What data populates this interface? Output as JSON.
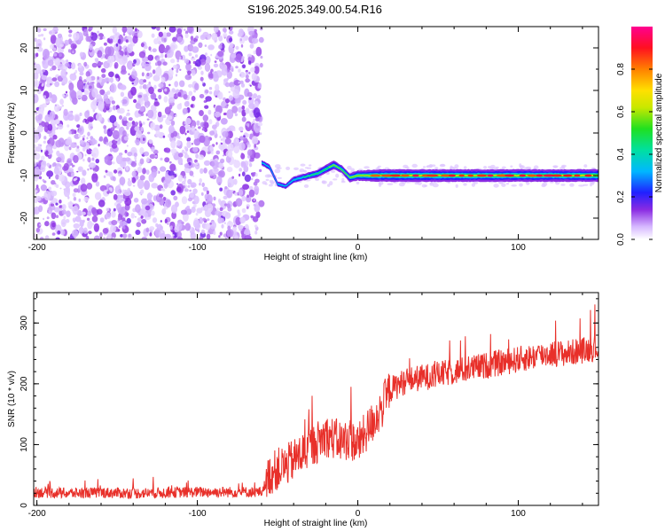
{
  "title": "S196.2025.349.00.54.R16",
  "chart_data": [
    {
      "type": "heatmap",
      "xlabel": "Height of straight line (km)",
      "ylabel": "Frequency (Hz)",
      "xlim": [
        -202,
        150
      ],
      "ylim": [
        -25,
        25
      ],
      "xticks": [
        -200,
        -100,
        0,
        100
      ],
      "yticks": [
        -20,
        -10,
        0,
        10,
        20
      ],
      "colorbar": {
        "label": "Normalized spectral amplitude",
        "range": [
          0.0,
          1.0
        ],
        "ticks": [
          0.0,
          0.2,
          0.4,
          0.6,
          0.8
        ]
      },
      "noise_region_x": [
        -202,
        -60
      ],
      "signal_trace": {
        "x": [
          -60,
          -55,
          -50,
          -45,
          -40,
          -35,
          -30,
          -25,
          -20,
          -15,
          -10,
          -5,
          0,
          5,
          10,
          20,
          40,
          60,
          80,
          100,
          120,
          150
        ],
        "frequency": [
          -7,
          -8,
          -12,
          -12.5,
          -11,
          -10.5,
          -10,
          -9.5,
          -8.5,
          -7.5,
          -8.5,
          -10.5,
          -10,
          -10,
          -10,
          -10,
          -10,
          -10,
          -10,
          -10,
          -10,
          -10
        ],
        "amplitude": [
          0.3,
          0.35,
          0.3,
          0.3,
          0.4,
          0.4,
          0.45,
          0.5,
          0.55,
          0.6,
          0.5,
          0.6,
          0.7,
          0.75,
          0.85,
          0.9,
          0.9,
          0.9,
          0.88,
          0.9,
          0.88,
          0.9
        ]
      }
    },
    {
      "type": "line",
      "xlabel": "Height of straight line (km)",
      "ylabel": "SNR (10 * v/v)",
      "xlim": [
        -202,
        150
      ],
      "ylim": [
        0,
        350
      ],
      "xticks": [
        -200,
        -100,
        0,
        100
      ],
      "yticks": [
        0,
        100,
        200,
        300
      ],
      "series": [
        {
          "name": "SNR",
          "color": "#e8302a",
          "x": [
            -202,
            -180,
            -160,
            -140,
            -120,
            -100,
            -80,
            -60,
            -55,
            -50,
            -45,
            -40,
            -35,
            -30,
            -25,
            -20,
            -15,
            -10,
            -5,
            0,
            5,
            10,
            15,
            20,
            30,
            40,
            50,
            60,
            70,
            80,
            90,
            100,
            110,
            120,
            130,
            140,
            150
          ],
          "values": [
            22,
            20,
            21,
            20,
            21,
            22,
            22,
            22,
            50,
            60,
            65,
            75,
            85,
            95,
            105,
            115,
            110,
            105,
            110,
            100,
            120,
            140,
            160,
            190,
            205,
            210,
            215,
            220,
            225,
            230,
            235,
            240,
            245,
            250,
            250,
            255,
            260
          ]
        }
      ]
    }
  ]
}
